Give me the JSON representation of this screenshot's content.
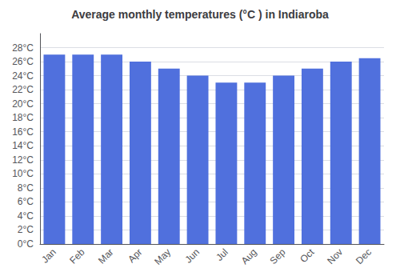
{
  "chart_data": {
    "type": "bar",
    "title": "Average monthly temperatures (°C ) in Indiaroba",
    "categories": [
      "Jan",
      "Feb",
      "Mar",
      "Apr",
      "May",
      "Jun",
      "Jul",
      "Aug",
      "Sep",
      "Oct",
      "Nov",
      "Dec"
    ],
    "values": [
      27,
      27,
      27,
      26,
      25,
      24,
      23,
      23,
      24,
      25,
      26,
      26.5
    ],
    "ylim": [
      0,
      30
    ],
    "yticks": [
      {
        "value": 0,
        "label": "0°C"
      },
      {
        "value": 2,
        "label": "2°C"
      },
      {
        "value": 4,
        "label": "4°C"
      },
      {
        "value": 6,
        "label": "6°C"
      },
      {
        "value": 8,
        "label": "8°C"
      },
      {
        "value": 10,
        "label": "10°C"
      },
      {
        "value": 12,
        "label": "12°C"
      },
      {
        "value": 14,
        "label": "14°C"
      },
      {
        "value": 16,
        "label": "16°C"
      },
      {
        "value": 18,
        "label": "18°C"
      },
      {
        "value": 20,
        "label": "20°C"
      },
      {
        "value": 22,
        "label": "22°C"
      },
      {
        "value": 24,
        "label": "24°C"
      },
      {
        "value": 26,
        "label": "26°C"
      },
      {
        "value": 28,
        "label": "28°C"
      }
    ],
    "grid": true
  }
}
